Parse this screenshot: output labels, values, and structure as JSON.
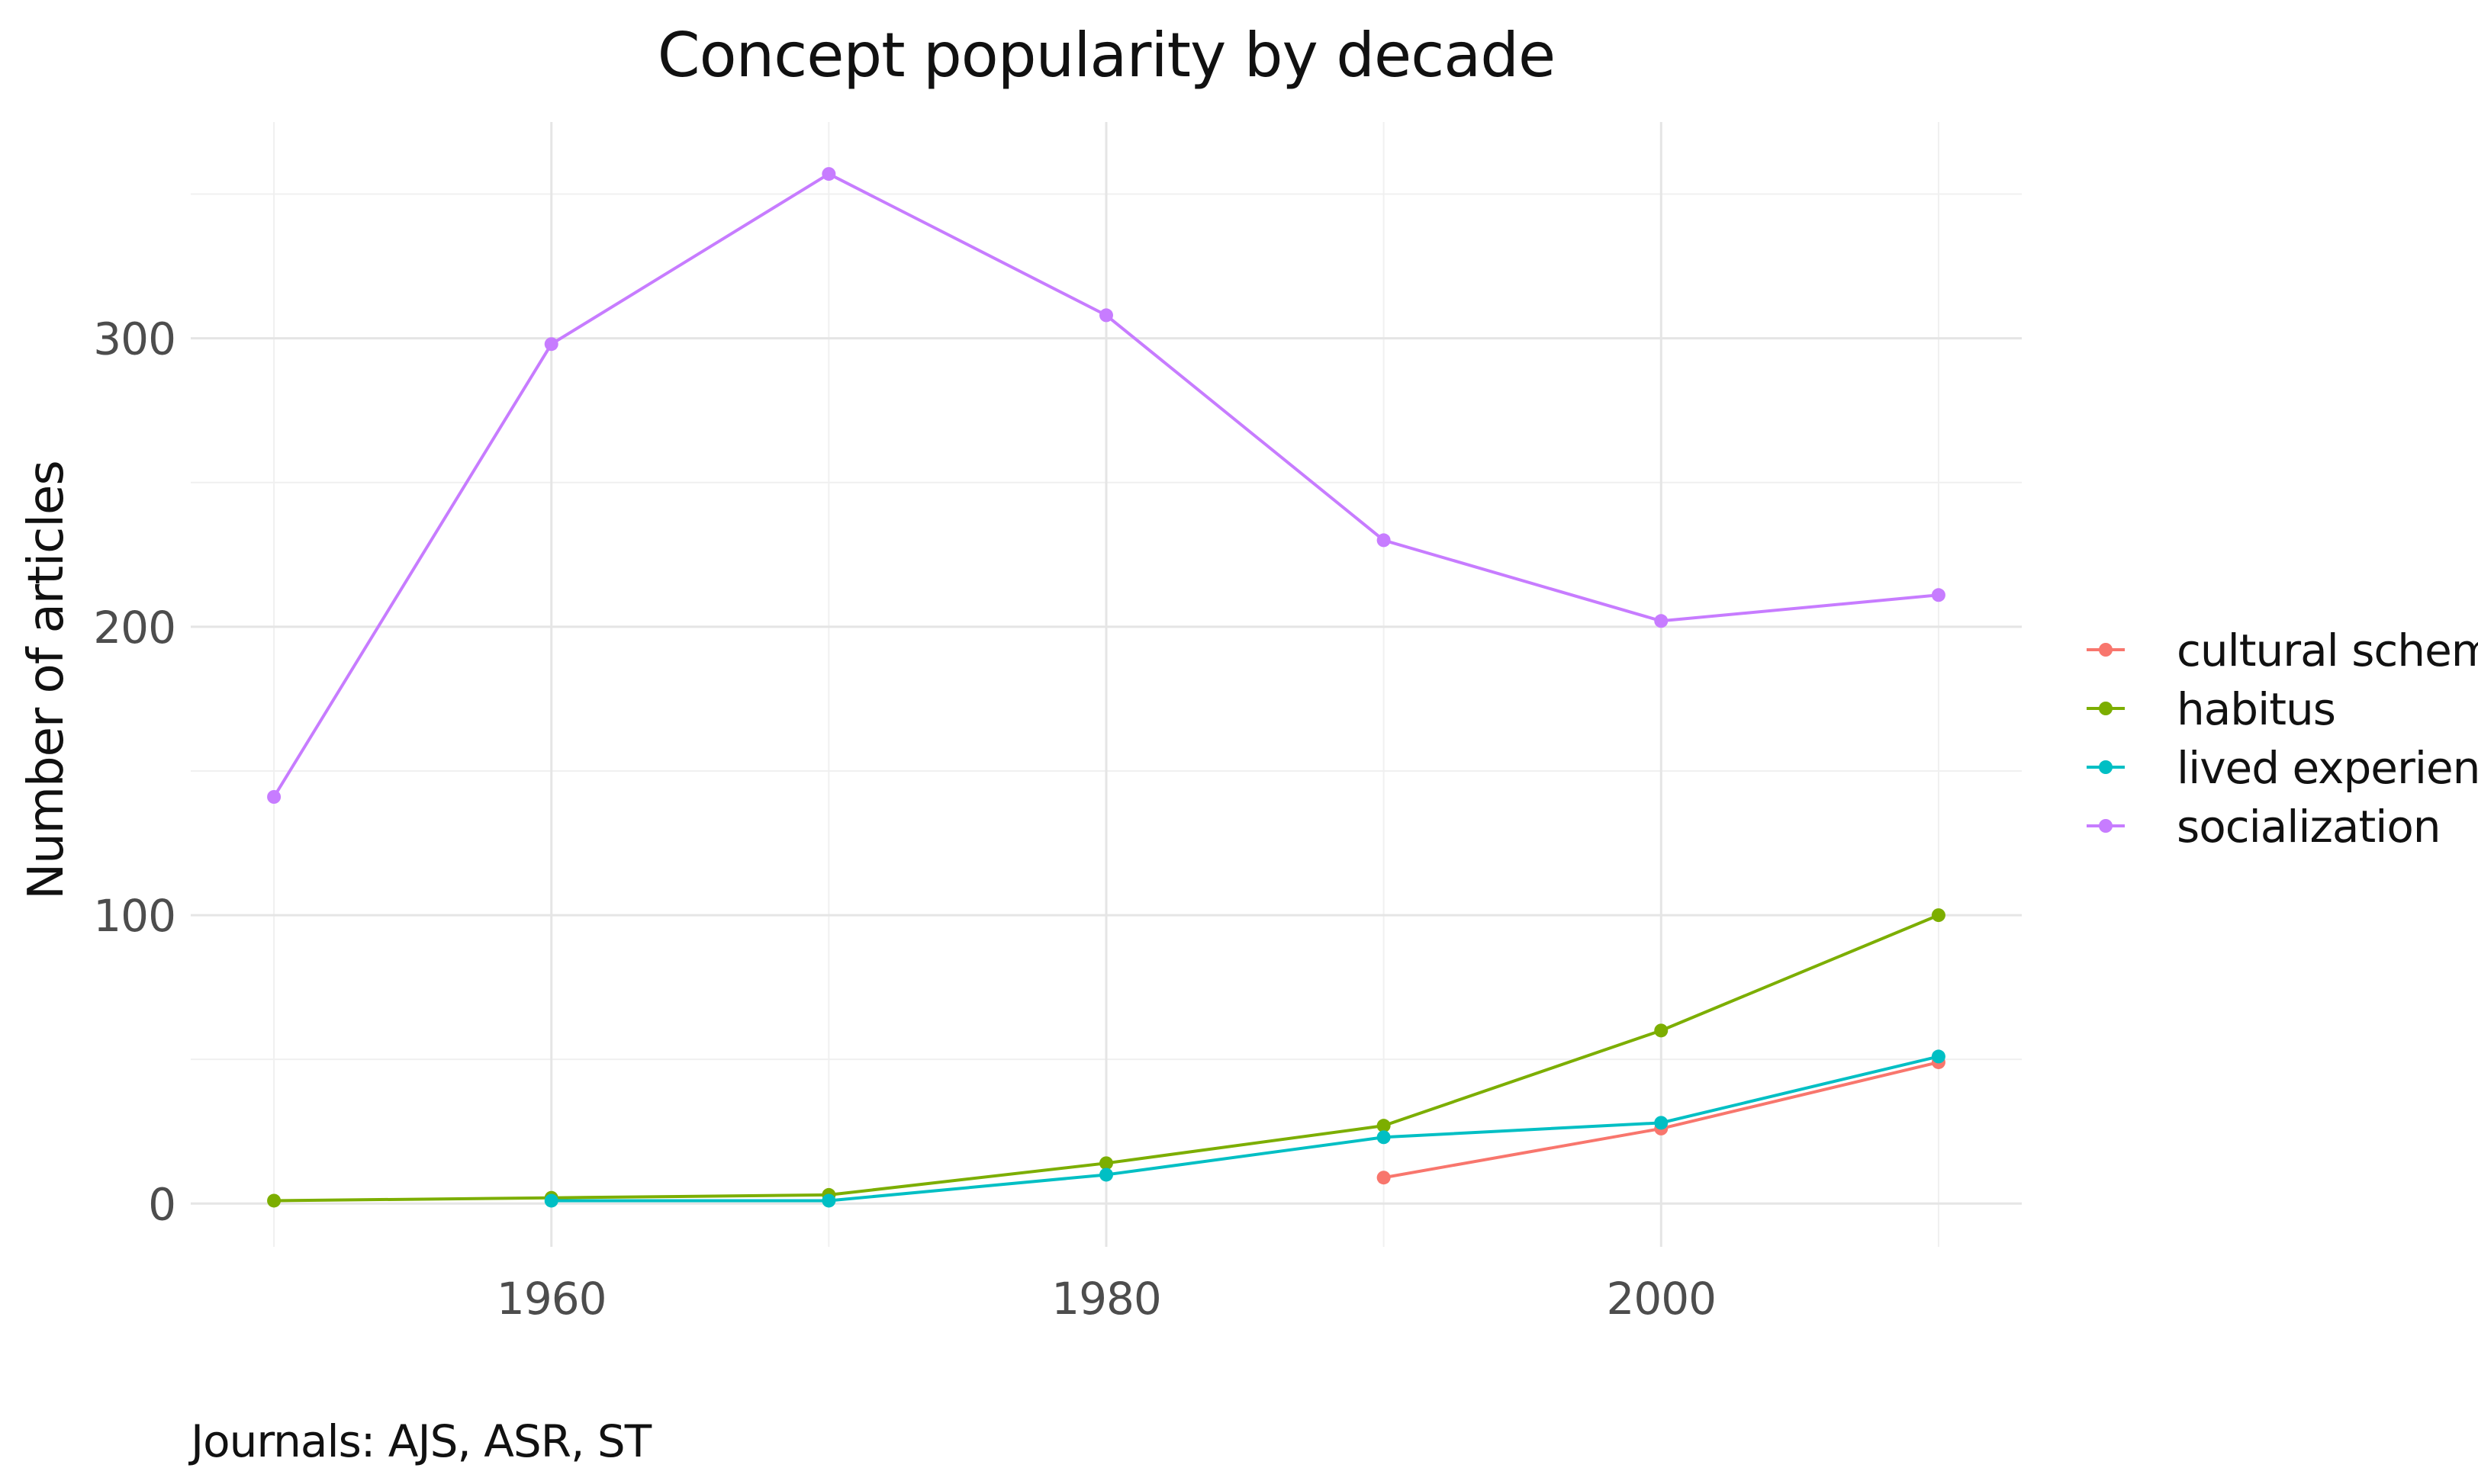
{
  "chart_data": {
    "type": "line",
    "title": "Concept popularity by decade",
    "xlabel": "",
    "ylabel": "Number of articles",
    "caption": "Journals: AJS, ASR, ST",
    "xlim": [
      1947,
      2013
    ],
    "ylim": [
      -15,
      375
    ],
    "x_ticks": [
      1960,
      1980,
      2000
    ],
    "x_minor": [
      1950,
      1970,
      1990,
      2010
    ],
    "y_ticks": [
      0,
      100,
      200,
      300
    ],
    "y_minor": [
      50,
      150,
      250,
      350
    ],
    "grid": true,
    "legend_position": "right",
    "series": [
      {
        "name": "cultural schema",
        "color": "#F8766D",
        "x": [
          1990,
          2000,
          2010
        ],
        "values": [
          9,
          26,
          49
        ]
      },
      {
        "name": "habitus",
        "color": "#7CAE00",
        "x": [
          1950,
          1960,
          1970,
          1980,
          1990,
          2000,
          2010
        ],
        "values": [
          1,
          2,
          3,
          14,
          27,
          60,
          100
        ]
      },
      {
        "name": "lived experience",
        "color": "#00BFC4",
        "x": [
          1960,
          1970,
          1980,
          1990,
          2000,
          2010
        ],
        "values": [
          1,
          1,
          10,
          23,
          28,
          51
        ]
      },
      {
        "name": "socialization",
        "color": "#C77CFF",
        "x": [
          1950,
          1960,
          1970,
          1980,
          1990,
          2000,
          2010
        ],
        "values": [
          141,
          298,
          357,
          308,
          230,
          202,
          211
        ]
      }
    ]
  }
}
